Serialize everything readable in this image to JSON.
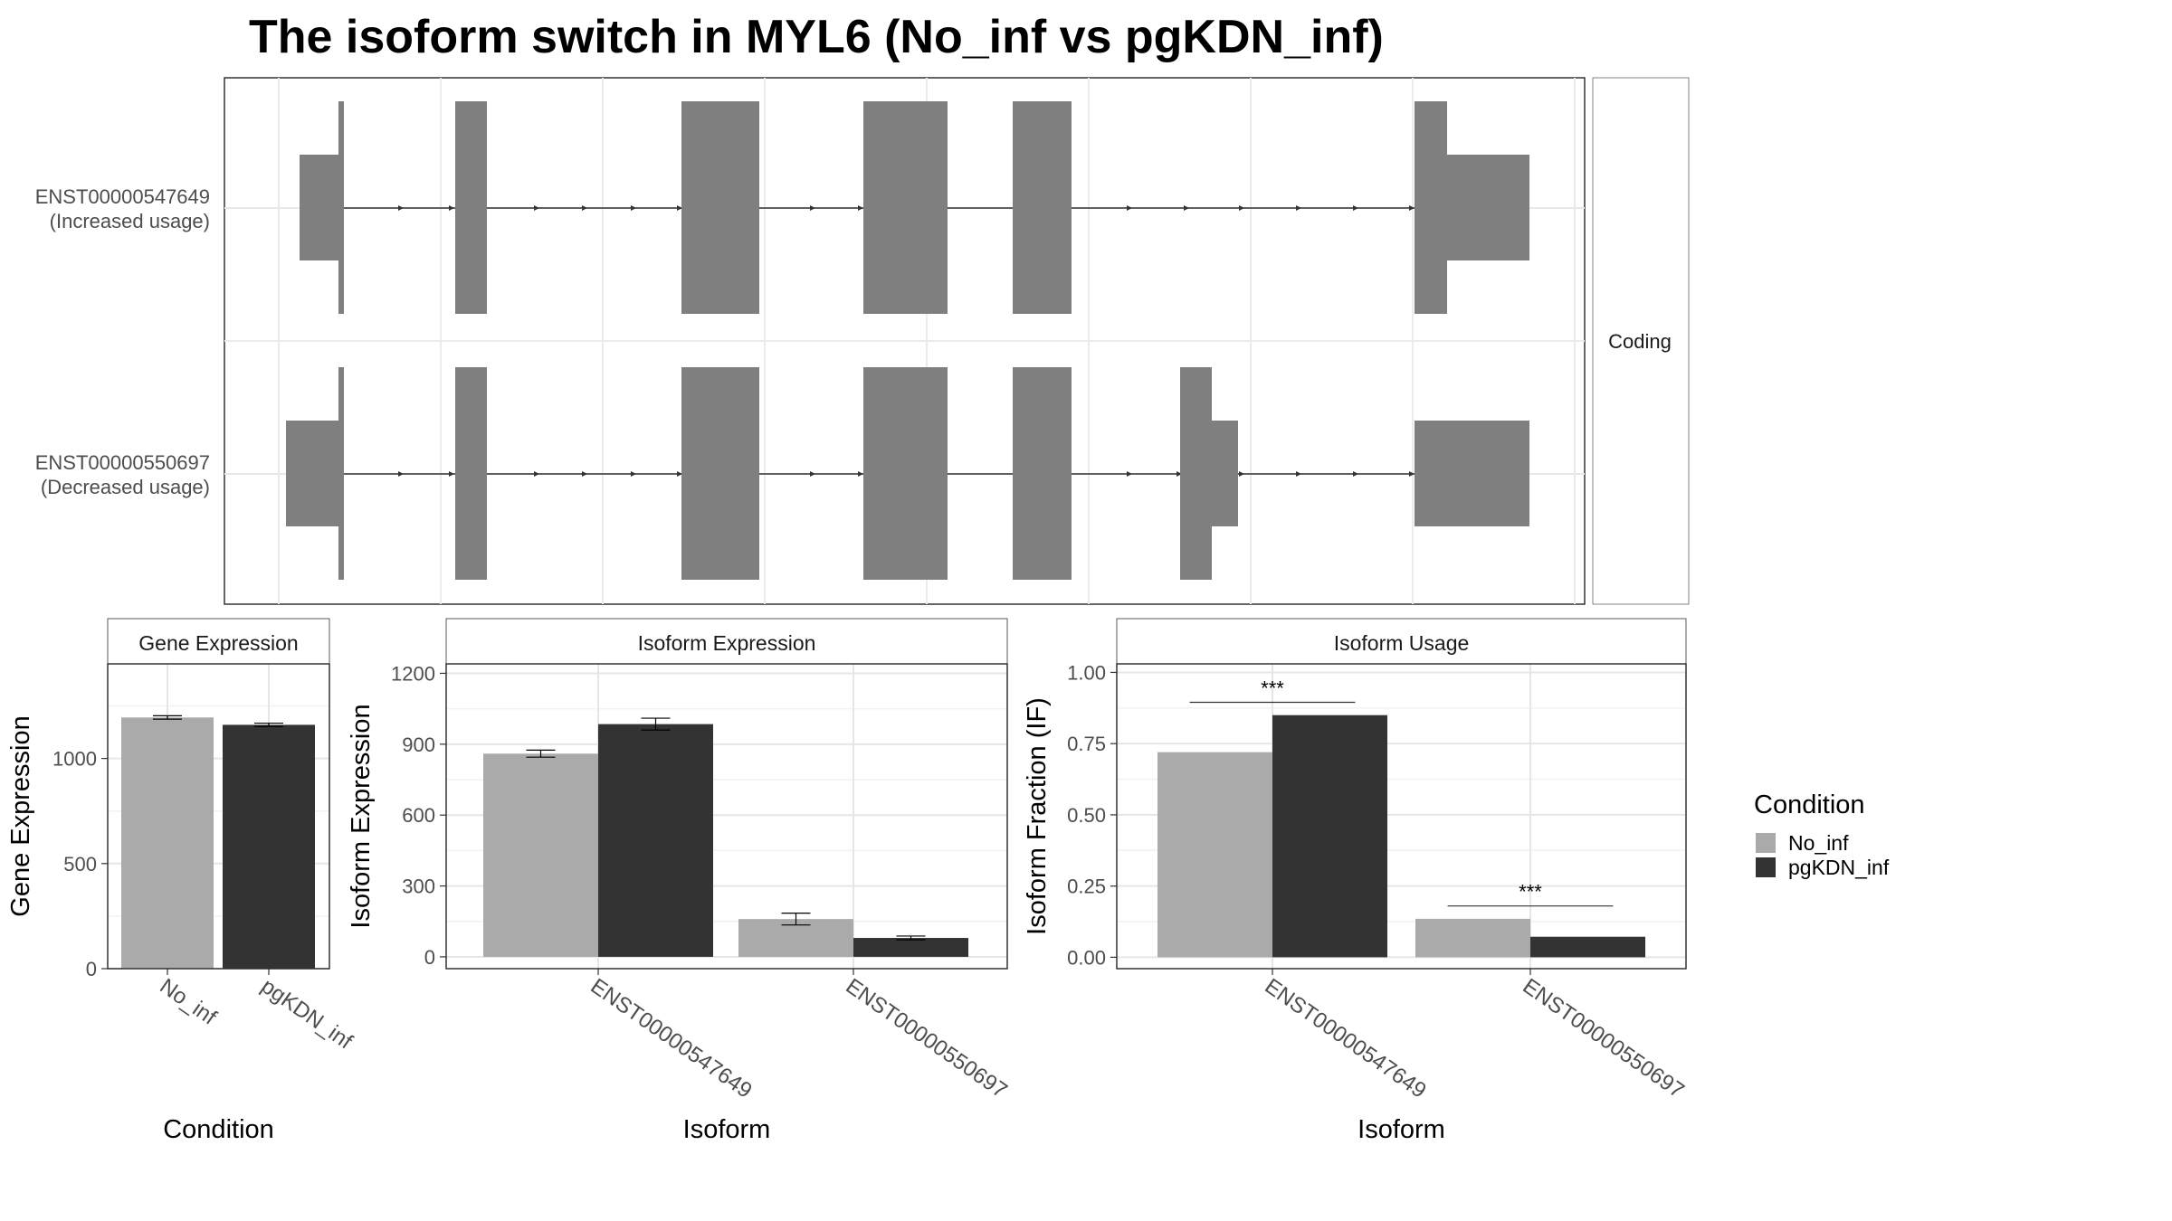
{
  "title": "The isoform switch in MYL6 (No_inf vs pgKDN_inf)",
  "colors": {
    "no_inf": "#aaaaaa",
    "pgkdn_inf": "#333333",
    "exon": "#7f7f7f",
    "grid": "#ebebeb",
    "strip": "#ffffff",
    "border": "#333333"
  },
  "structure": {
    "facet_label": "Coding",
    "tracks": [
      {
        "id": "ENST00000547649",
        "line1": "ENST00000547649",
        "line2": "(Increased usage)"
      },
      {
        "id": "ENST00000550697",
        "line1": "ENST00000550697",
        "line2": "(Decreased usage)"
      }
    ]
  },
  "legend": {
    "title": "Condition",
    "items": [
      {
        "label": "No_inf",
        "color": "#aaaaaa"
      },
      {
        "label": "pgKDN_inf",
        "color": "#333333"
      }
    ]
  },
  "chart_data": [
    {
      "type": "bar",
      "panel": "gene",
      "title": "Gene Expression",
      "xlabel": "Condition",
      "ylabel": "Gene Expression",
      "ylim": [
        0,
        1450
      ],
      "yticks": [
        0,
        500,
        1000
      ],
      "categories": [
        "No_inf",
        "pgKDN_inf"
      ],
      "values": [
        1195,
        1160
      ],
      "errors": [
        8,
        8
      ],
      "colors": [
        "#aaaaaa",
        "#333333"
      ]
    },
    {
      "type": "bar",
      "panel": "isoexp",
      "title": "Isoform Expression",
      "xlabel": "Isoform",
      "ylabel": "Isoform Expression",
      "ylim": [
        -50,
        1240
      ],
      "yticks": [
        0,
        300,
        600,
        900,
        1200
      ],
      "categories": [
        "ENST00000547649",
        "ENST00000550697"
      ],
      "series": [
        {
          "name": "No_inf",
          "values": [
            860,
            160
          ],
          "errors": [
            15,
            25
          ]
        },
        {
          "name": "pgKDN_inf",
          "values": [
            985,
            80
          ],
          "errors": [
            25,
            8
          ]
        }
      ]
    },
    {
      "type": "bar",
      "panel": "isousage",
      "title": "Isoform Usage",
      "xlabel": "Isoform",
      "ylabel": "Isoform Fraction (IF)",
      "ylim": [
        -0.04,
        1.03
      ],
      "yticks": [
        "0.00",
        "0.25",
        "0.50",
        "0.75",
        "1.00"
      ],
      "categories": [
        "ENST00000547649",
        "ENST00000550697"
      ],
      "series": [
        {
          "name": "No_inf",
          "values": [
            0.72,
            0.135
          ]
        },
        {
          "name": "pgKDN_inf",
          "values": [
            0.85,
            0.072
          ]
        }
      ],
      "significance": [
        {
          "category": "ENST00000547649",
          "label": "***",
          "level": 0.895
        },
        {
          "category": "ENST00000550697",
          "label": "***",
          "level": 0.18
        }
      ]
    }
  ]
}
